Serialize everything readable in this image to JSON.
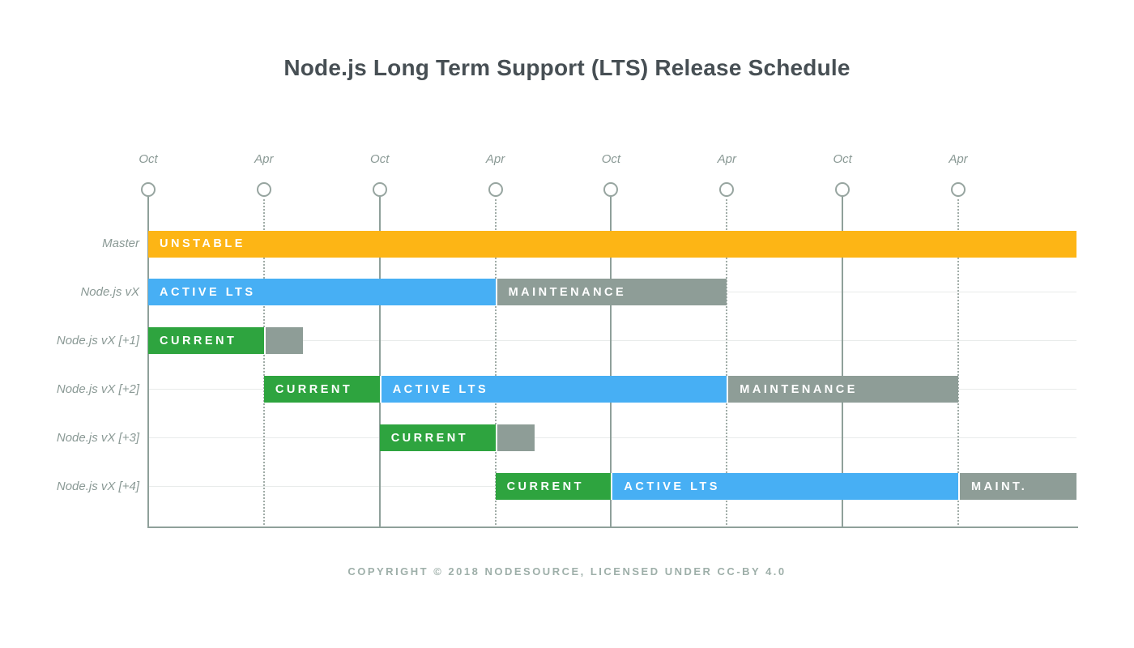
{
  "title": "Node.js Long Term Support (LTS) Release Schedule",
  "footer": "COPYRIGHT © 2018 NODESOURCE, LICENSED UNDER CC-BY 4.0",
  "chart_data": {
    "type": "bar",
    "variant": "gantt-release-timeline",
    "title": "Node.js Long Term Support (LTS) Release Schedule",
    "xlabel": "",
    "ylabel": "",
    "legend": "none",
    "grid": "horizontal-row-lines",
    "x_axis": {
      "unit": "6-month tick intervals (Oct/Apr)",
      "range": [
        0,
        8.02
      ],
      "ticks": [
        {
          "label": "Oct",
          "position": 0,
          "line": "solid"
        },
        {
          "label": "Apr",
          "position": 1,
          "line": "dotted"
        },
        {
          "label": "Oct",
          "position": 2,
          "line": "solid"
        },
        {
          "label": "Apr",
          "position": 3,
          "line": "dotted"
        },
        {
          "label": "Oct",
          "position": 4,
          "line": "solid"
        },
        {
          "label": "Apr",
          "position": 5,
          "line": "dotted"
        },
        {
          "label": "Oct",
          "position": 6,
          "line": "solid"
        },
        {
          "label": "Apr",
          "position": 7,
          "line": "dotted"
        }
      ]
    },
    "rows": [
      {
        "label": "Master",
        "segments": [
          {
            "phase": "UNSTABLE",
            "start": 0,
            "end": 8.02,
            "color_key": "unstable"
          }
        ]
      },
      {
        "label": "Node.js vX",
        "segments": [
          {
            "phase": "ACTIVE LTS",
            "start": 0,
            "end": 3,
            "color_key": "active_lts"
          },
          {
            "phase": "MAINTENANCE",
            "start": 3,
            "end": 5,
            "color_key": "maintenance"
          }
        ]
      },
      {
        "label": "Node.js vX [+1]",
        "segments": [
          {
            "phase": "CURRENT",
            "start": 0,
            "end": 1,
            "color_key": "current"
          },
          {
            "phase": "",
            "start": 1,
            "end": 1.34,
            "color_key": "maintenance"
          }
        ]
      },
      {
        "label": "Node.js vX [+2]",
        "segments": [
          {
            "phase": "CURRENT",
            "start": 1,
            "end": 2,
            "color_key": "current"
          },
          {
            "phase": "ACTIVE LTS",
            "start": 2,
            "end": 5,
            "color_key": "active_lts"
          },
          {
            "phase": "MAINTENANCE",
            "start": 5,
            "end": 7,
            "color_key": "maintenance"
          }
        ]
      },
      {
        "label": "Node.js vX [+3]",
        "segments": [
          {
            "phase": "CURRENT",
            "start": 2,
            "end": 3,
            "color_key": "current"
          },
          {
            "phase": "",
            "start": 3,
            "end": 3.34,
            "color_key": "maintenance"
          }
        ]
      },
      {
        "label": "Node.js vX [+4]",
        "segments": [
          {
            "phase": "CURRENT",
            "start": 3,
            "end": 4,
            "color_key": "current"
          },
          {
            "phase": "ACTIVE LTS",
            "start": 4,
            "end": 7,
            "color_key": "active_lts"
          },
          {
            "phase": "MAINT.",
            "start": 7,
            "end": 8.02,
            "color_key": "maintenance"
          }
        ]
      }
    ],
    "colors": {
      "unstable": "#FDB515",
      "current": "#2EA43F",
      "active_lts": "#47AFF4",
      "maintenance": "#8E9D97",
      "axis": "#8FA09A",
      "dotted_line": "#A0ACA7",
      "gridline": "#E8EBEA",
      "tick_label": "#8A9995",
      "title_text": "#474F54",
      "footer_text": "#9EAFA9"
    }
  }
}
